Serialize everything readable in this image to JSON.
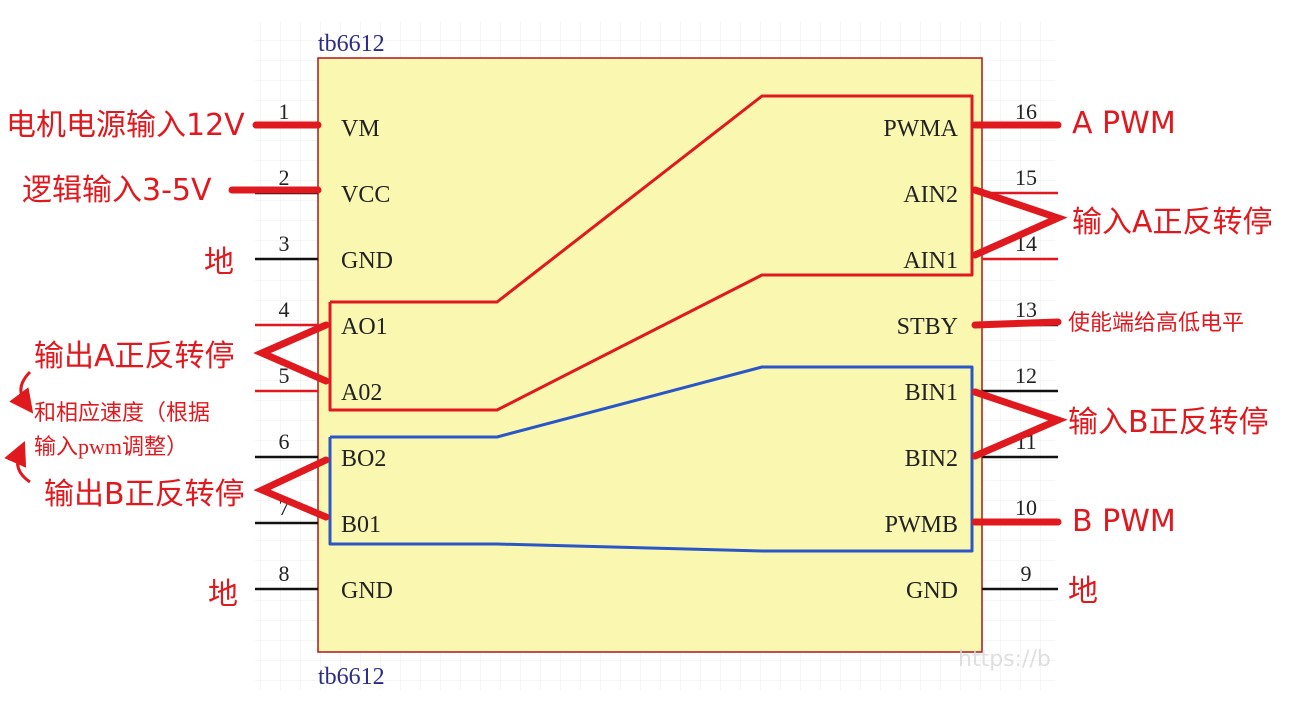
{
  "chip": {
    "name_top": "tb6612",
    "name_bottom": "tb6612",
    "watermark": "https://b",
    "body_color": "#faf8b0",
    "outline_color": "#b0141b"
  },
  "pins": [
    {
      "num": "1",
      "name": "VM",
      "side": "left",
      "row": 0,
      "stub": "#111111"
    },
    {
      "num": "2",
      "name": "VCC",
      "side": "left",
      "row": 1,
      "stub": "#111111"
    },
    {
      "num": "3",
      "name": "GND",
      "side": "left",
      "row": 2,
      "stub": "#111111"
    },
    {
      "num": "4",
      "name": "AO1",
      "side": "left",
      "row": 3,
      "stub": "#e0191f"
    },
    {
      "num": "5",
      "name": "A02",
      "side": "left",
      "row": 4,
      "stub": "#e0191f"
    },
    {
      "num": "6",
      "name": "BO2",
      "side": "left",
      "row": 5,
      "stub": "#111111"
    },
    {
      "num": "7",
      "name": "B01",
      "side": "left",
      "row": 6,
      "stub": "#111111"
    },
    {
      "num": "8",
      "name": "GND",
      "side": "left",
      "row": 7,
      "stub": "#111111"
    },
    {
      "num": "16",
      "name": "PWMA",
      "side": "right",
      "row": 0,
      "stub": "#e0191f"
    },
    {
      "num": "15",
      "name": "AIN2",
      "side": "right",
      "row": 1,
      "stub": "#e0191f"
    },
    {
      "num": "14",
      "name": "AIN1",
      "side": "right",
      "row": 2,
      "stub": "#e0191f"
    },
    {
      "num": "13",
      "name": "STBY",
      "side": "right",
      "row": 3,
      "stub": "#111111"
    },
    {
      "num": "12",
      "name": "BIN1",
      "side": "right",
      "row": 4,
      "stub": "#111111"
    },
    {
      "num": "11",
      "name": "BIN2",
      "side": "right",
      "row": 5,
      "stub": "#111111"
    },
    {
      "num": "10",
      "name": "PWMB",
      "side": "right",
      "row": 6,
      "stub": "#111111"
    },
    {
      "num": "9",
      "name": "GND",
      "side": "right",
      "row": 7,
      "stub": "#111111"
    }
  ],
  "annotations": {
    "motor_power": "电机电源输入12V",
    "logic_power": "逻辑输入3-5V",
    "gnd_3": "地",
    "out_a": "输出A正反转停",
    "speed_note_line1": "和相应速度（根据",
    "speed_note_line2": "输入pwm调整）",
    "out_b": "输出B正反转停",
    "gnd_8": "地",
    "a_pwm": "A PWM",
    "in_a": "输入A正反转停",
    "stby": "使能端给高低电平",
    "in_b": "输入B正反转停",
    "b_pwm": "B PWM",
    "gnd_9": "地"
  },
  "colors": {
    "annotation_red": "#e0191f",
    "channel_a": "#e0191f",
    "channel_b": "#2a56c6",
    "grid": "#eeeeee"
  }
}
